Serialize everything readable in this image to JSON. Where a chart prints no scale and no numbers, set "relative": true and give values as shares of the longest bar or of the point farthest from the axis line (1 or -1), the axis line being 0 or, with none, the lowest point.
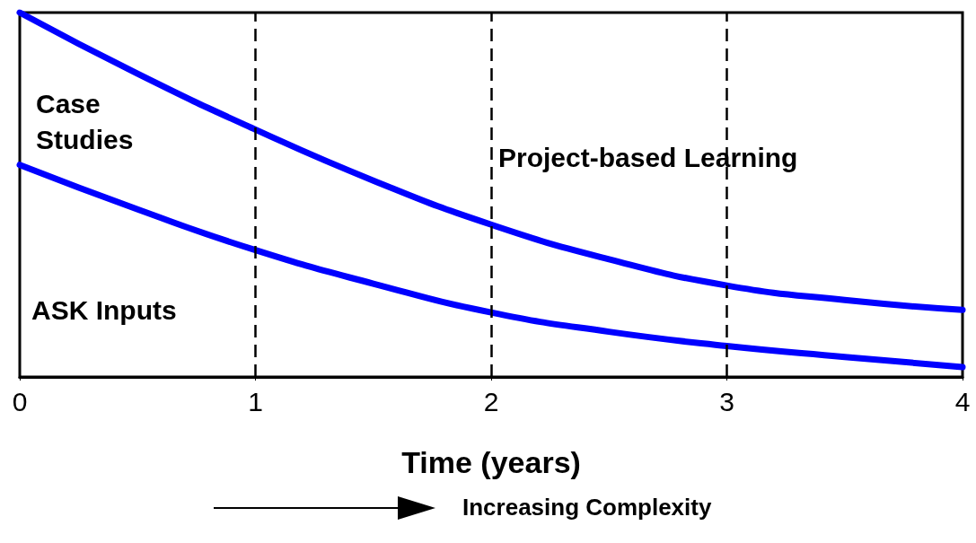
{
  "chart_data": {
    "type": "line",
    "relative": true,
    "xlabel": "Time (years)",
    "xlim": [
      0,
      4
    ],
    "xticks": [
      0,
      1,
      2,
      3,
      4
    ],
    "grid": false,
    "marker": "none",
    "line_style": "solid",
    "x": [
      0,
      0.5,
      1,
      1.5,
      2,
      2.5,
      3,
      3.5,
      4
    ],
    "series": [
      {
        "color": "#0000ff",
        "values": [
          1,
          0.832,
          0.679,
          0.539,
          0.418,
          0.323,
          0.251,
          0.211,
          0.184
        ]
      },
      {
        "color": "#0000ff",
        "values": [
          0.582,
          0.46,
          0.348,
          0.256,
          0.177,
          0.124,
          0.085,
          0.055,
          0.027
        ]
      }
    ],
    "ref_lines": [
      {
        "axis": "x",
        "value": 1,
        "color": "#000000",
        "line_style": "dashed"
      },
      {
        "axis": "x",
        "value": 2,
        "color": "#000000",
        "line_style": "dashed"
      },
      {
        "axis": "x",
        "value": 3,
        "color": "#000000",
        "line_style": "dashed"
      }
    ],
    "annotations": [
      "Case\nStudies",
      "ASK Inputs",
      "Project-based Learning",
      "Increasing Complexity"
    ]
  }
}
